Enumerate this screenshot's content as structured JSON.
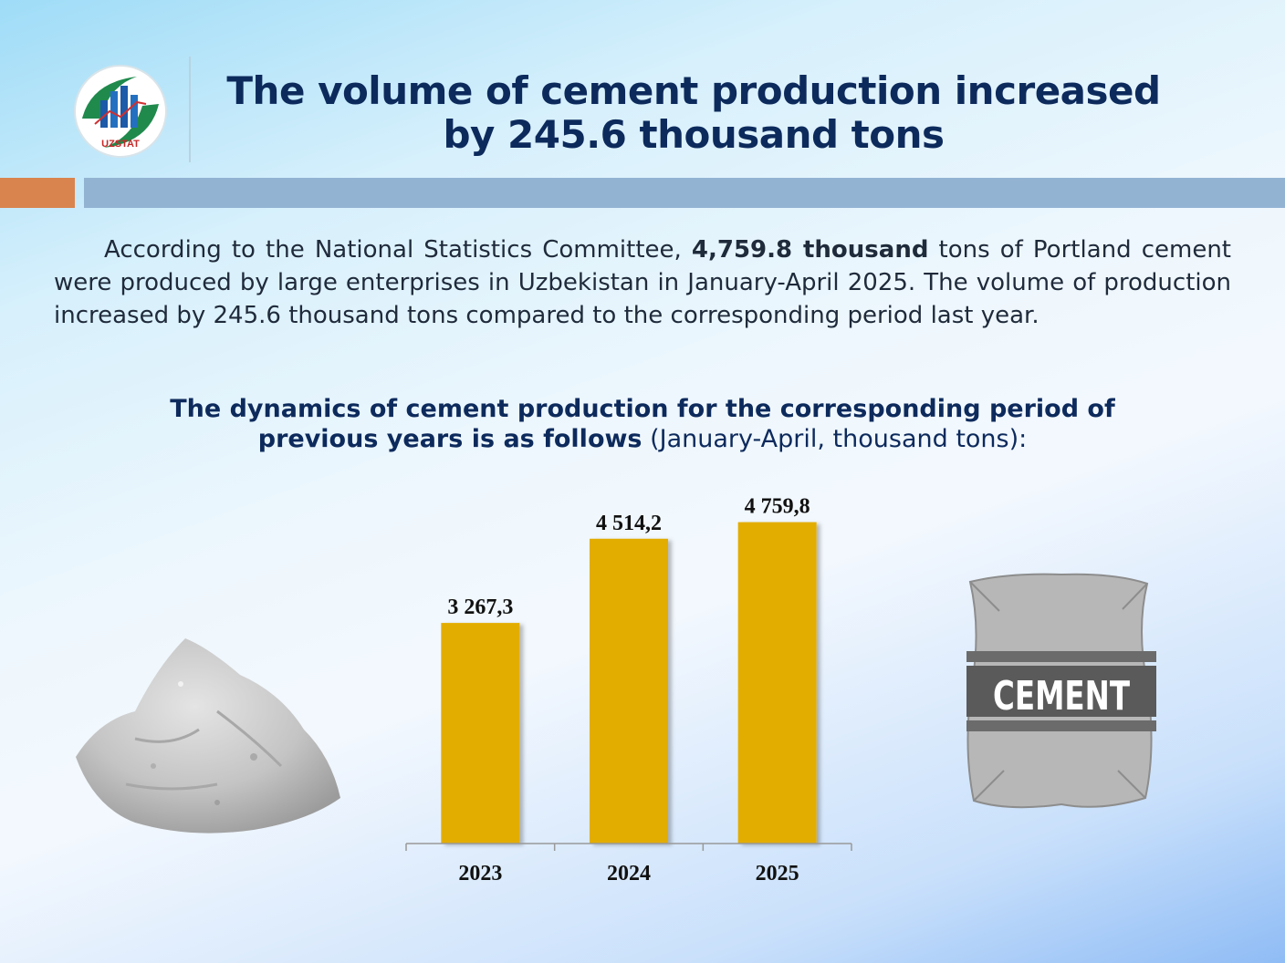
{
  "header": {
    "logo_text": "UZSTAT",
    "title_line1": "The volume of cement production increased",
    "title_line2": "by 245.6 thousand tons"
  },
  "intro": {
    "text_before": "According to the National Statistics Committee, ",
    "highlight": "4,759.8 thousand",
    "text_after": " tons of Portland cement were produced by large enterprises in Uzbekistan in January-April 2025. The volume of production increased by 245.6 thousand tons compared to the corresponding period last year."
  },
  "subtitle": {
    "bold_line1": "The dynamics of cement production for the corresponding period of",
    "bold_line2": "previous years is as follows",
    "normal": " (January-April, thousand tons):"
  },
  "chart_data": {
    "type": "bar",
    "categories": [
      "2023",
      "2024",
      "2025"
    ],
    "values": [
      3267.3,
      4514.2,
      4759.8
    ],
    "value_labels": [
      "3 267,3",
      "4 514,2",
      "4 759,8"
    ],
    "bar_color": "#e3ad00",
    "ylim": [
      0,
      5200
    ],
    "grid": false
  },
  "bag": {
    "label": "CEMENT"
  },
  "colors": {
    "title": "#0d2a5c",
    "accent_orange": "#d9844e",
    "accent_blue": "#93b3d3"
  }
}
